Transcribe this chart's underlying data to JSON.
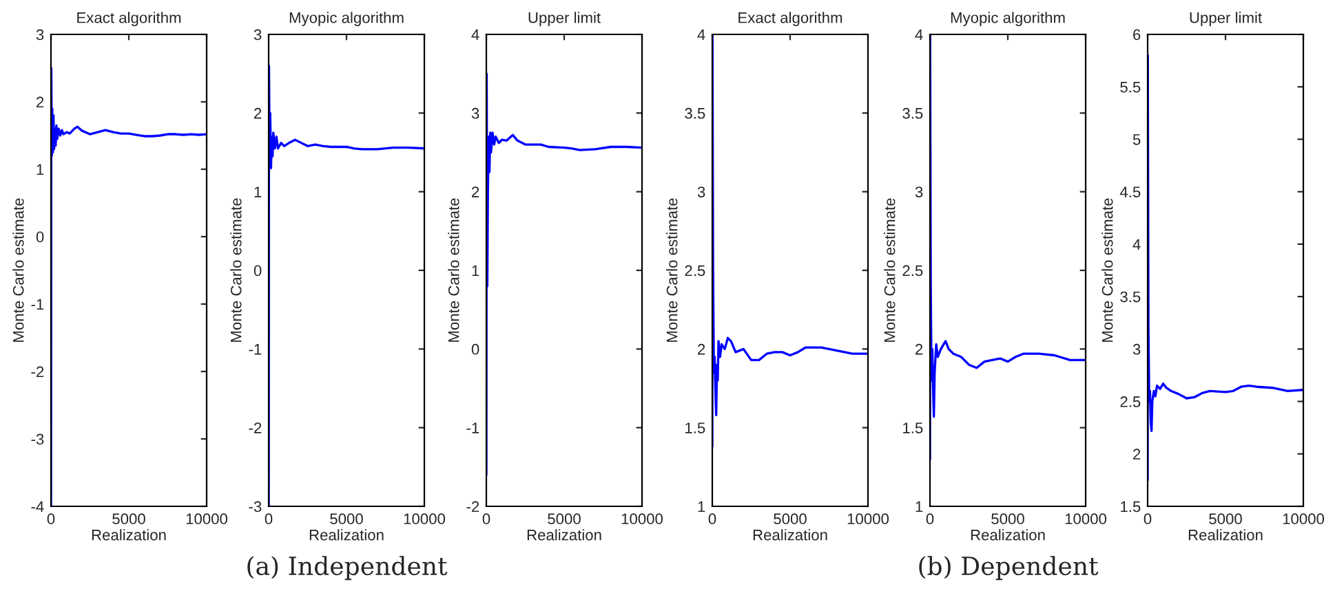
{
  "chart_data": [
    {
      "type": "line",
      "title": "Exact algorithm",
      "xlabel": "Realization",
      "ylabel": "Monte Carlo estimate",
      "xlim": [
        0,
        10000
      ],
      "xticks": [
        0,
        5000,
        10000
      ],
      "ylim": [
        -4,
        3
      ],
      "yticks": [
        -4,
        -3,
        -2,
        -1,
        0,
        1,
        2,
        3
      ],
      "grid": false,
      "series": [
        {
          "color": "#0000ff",
          "x": [
            1,
            20,
            50,
            80,
            120,
            160,
            200,
            250,
            300,
            350,
            400,
            500,
            600,
            700,
            800,
            1000,
            1200,
            1500,
            1700,
            2000,
            2500,
            3000,
            3500,
            4000,
            4500,
            5000,
            5500,
            6000,
            6500,
            7000,
            7500,
            8000,
            8500,
            9000,
            9500,
            10000
          ],
          "values": [
            -4,
            2.5,
            1.2,
            1.9,
            1.25,
            1.8,
            1.3,
            1.6,
            1.35,
            1.65,
            1.45,
            1.6,
            1.5,
            1.58,
            1.52,
            1.55,
            1.53,
            1.6,
            1.63,
            1.57,
            1.52,
            1.55,
            1.58,
            1.55,
            1.53,
            1.53,
            1.51,
            1.49,
            1.49,
            1.5,
            1.52,
            1.52,
            1.51,
            1.52,
            1.51,
            1.52
          ]
        }
      ]
    },
    {
      "type": "line",
      "title": "Myopic algorithm",
      "xlabel": "Realization",
      "ylabel": "Monte Carlo estimate",
      "xlim": [
        0,
        10000
      ],
      "xticks": [
        0,
        5000,
        10000
      ],
      "ylim": [
        -3,
        3
      ],
      "yticks": [
        -3,
        -2,
        -1,
        0,
        1,
        2,
        3
      ],
      "grid": false,
      "annotations": [
        "(a) Independent"
      ],
      "series": [
        {
          "color": "#0000ff",
          "x": [
            1,
            20,
            60,
            100,
            150,
            200,
            250,
            300,
            400,
            500,
            600,
            800,
            1000,
            1300,
            1700,
            2000,
            2500,
            3000,
            3500,
            4000,
            5000,
            5500,
            6000,
            7000,
            8000,
            9000,
            10000
          ],
          "values": [
            -3,
            2.6,
            1.5,
            2.0,
            1.3,
            1.7,
            1.45,
            1.75,
            1.55,
            1.7,
            1.55,
            1.62,
            1.58,
            1.62,
            1.66,
            1.63,
            1.58,
            1.6,
            1.58,
            1.57,
            1.57,
            1.55,
            1.54,
            1.54,
            1.56,
            1.56,
            1.55
          ]
        }
      ]
    },
    {
      "type": "line",
      "title": "Upper limit",
      "xlabel": "Realization",
      "ylabel": "Monte Carlo estimate",
      "xlim": [
        0,
        10000
      ],
      "xticks": [
        0,
        5000,
        10000
      ],
      "ylim": [
        -2,
        4
      ],
      "yticks": [
        -2,
        -1,
        0,
        1,
        2,
        3,
        4
      ],
      "grid": false,
      "series": [
        {
          "color": "#0000ff",
          "x": [
            1,
            20,
            60,
            100,
            150,
            200,
            250,
            300,
            400,
            500,
            600,
            800,
            1000,
            1300,
            1700,
            2000,
            2500,
            3000,
            3500,
            4000,
            5000,
            5500,
            6000,
            7000,
            8000,
            9000,
            10000
          ],
          "values": [
            -1.6,
            3.5,
            0.8,
            2.0,
            2.7,
            2.25,
            2.75,
            2.5,
            2.75,
            2.6,
            2.7,
            2.62,
            2.66,
            2.65,
            2.72,
            2.65,
            2.6,
            2.6,
            2.6,
            2.57,
            2.56,
            2.55,
            2.53,
            2.54,
            2.57,
            2.57,
            2.56
          ]
        }
      ]
    },
    {
      "type": "line",
      "title": "Exact algorithm",
      "xlabel": "Realization",
      "ylabel": "Monte Carlo estimate",
      "xlim": [
        0,
        10000
      ],
      "xticks": [
        0,
        5000,
        10000
      ],
      "ylim": [
        1,
        4
      ],
      "yticks": [
        1,
        1.5,
        2,
        2.5,
        3,
        3.5,
        4
      ],
      "grid": false,
      "series": [
        {
          "color": "#0000ff",
          "x": [
            1,
            10,
            50,
            100,
            150,
            200,
            250,
            300,
            350,
            400,
            500,
            600,
            800,
            1000,
            1200,
            1500,
            2000,
            2500,
            3000,
            3500,
            4000,
            4500,
            5000,
            5500,
            6000,
            7000,
            8000,
            9000,
            10000
          ],
          "values": [
            1.38,
            4,
            2.5,
            1.85,
            1.95,
            1.75,
            1.58,
            1.9,
            1.8,
            2.05,
            1.95,
            2.03,
            2.0,
            2.07,
            2.05,
            1.98,
            2.0,
            1.93,
            1.93,
            1.97,
            1.98,
            1.98,
            1.96,
            1.98,
            2.01,
            2.01,
            1.99,
            1.97,
            1.97
          ]
        }
      ]
    },
    {
      "type": "line",
      "title": "Myopic algorithm",
      "xlabel": "Realization",
      "ylabel": "Monte Carlo estimate",
      "xlim": [
        0,
        10000
      ],
      "xticks": [
        0,
        5000,
        10000
      ],
      "ylim": [
        1,
        4
      ],
      "yticks": [
        1,
        1.5,
        2,
        2.5,
        3,
        3.5,
        4
      ],
      "grid": false,
      "annotations": [
        "(b) Dependent"
      ],
      "series": [
        {
          "color": "#0000ff",
          "x": [
            1,
            10,
            50,
            100,
            150,
            200,
            250,
            300,
            400,
            500,
            700,
            1000,
            1200,
            1500,
            2000,
            2500,
            3000,
            3500,
            4000,
            4500,
            5000,
            5500,
            6000,
            7000,
            8000,
            9000,
            10000
          ],
          "values": [
            1.3,
            4,
            2.4,
            1.8,
            2.0,
            1.75,
            1.57,
            1.85,
            2.03,
            1.95,
            2.0,
            2.05,
            2.0,
            1.97,
            1.95,
            1.9,
            1.88,
            1.92,
            1.93,
            1.94,
            1.92,
            1.95,
            1.97,
            1.97,
            1.96,
            1.93,
            1.93
          ]
        }
      ]
    },
    {
      "type": "line",
      "title": "Upper limit",
      "xlabel": "Realization",
      "ylabel": "Monte Carlo estimate",
      "xlim": [
        0,
        10000
      ],
      "xticks": [
        0,
        5000,
        10000
      ],
      "ylim": [
        1.5,
        6
      ],
      "yticks": [
        1.5,
        2,
        2.5,
        3,
        3.5,
        4,
        4.5,
        5,
        5.5,
        6
      ],
      "grid": false,
      "series": [
        {
          "color": "#0000ff",
          "x": [
            1,
            10,
            50,
            100,
            150,
            200,
            250,
            300,
            400,
            500,
            600,
            800,
            1000,
            1200,
            1500,
            2000,
            2500,
            3000,
            3500,
            4000,
            5000,
            5500,
            6000,
            6500,
            7000,
            8000,
            9000,
            10000
          ],
          "values": [
            1.75,
            5.8,
            3.2,
            2.5,
            2.6,
            2.3,
            2.22,
            2.5,
            2.6,
            2.55,
            2.65,
            2.62,
            2.67,
            2.63,
            2.6,
            2.57,
            2.53,
            2.54,
            2.58,
            2.6,
            2.59,
            2.6,
            2.64,
            2.65,
            2.64,
            2.63,
            2.6,
            2.61
          ]
        }
      ]
    }
  ]
}
